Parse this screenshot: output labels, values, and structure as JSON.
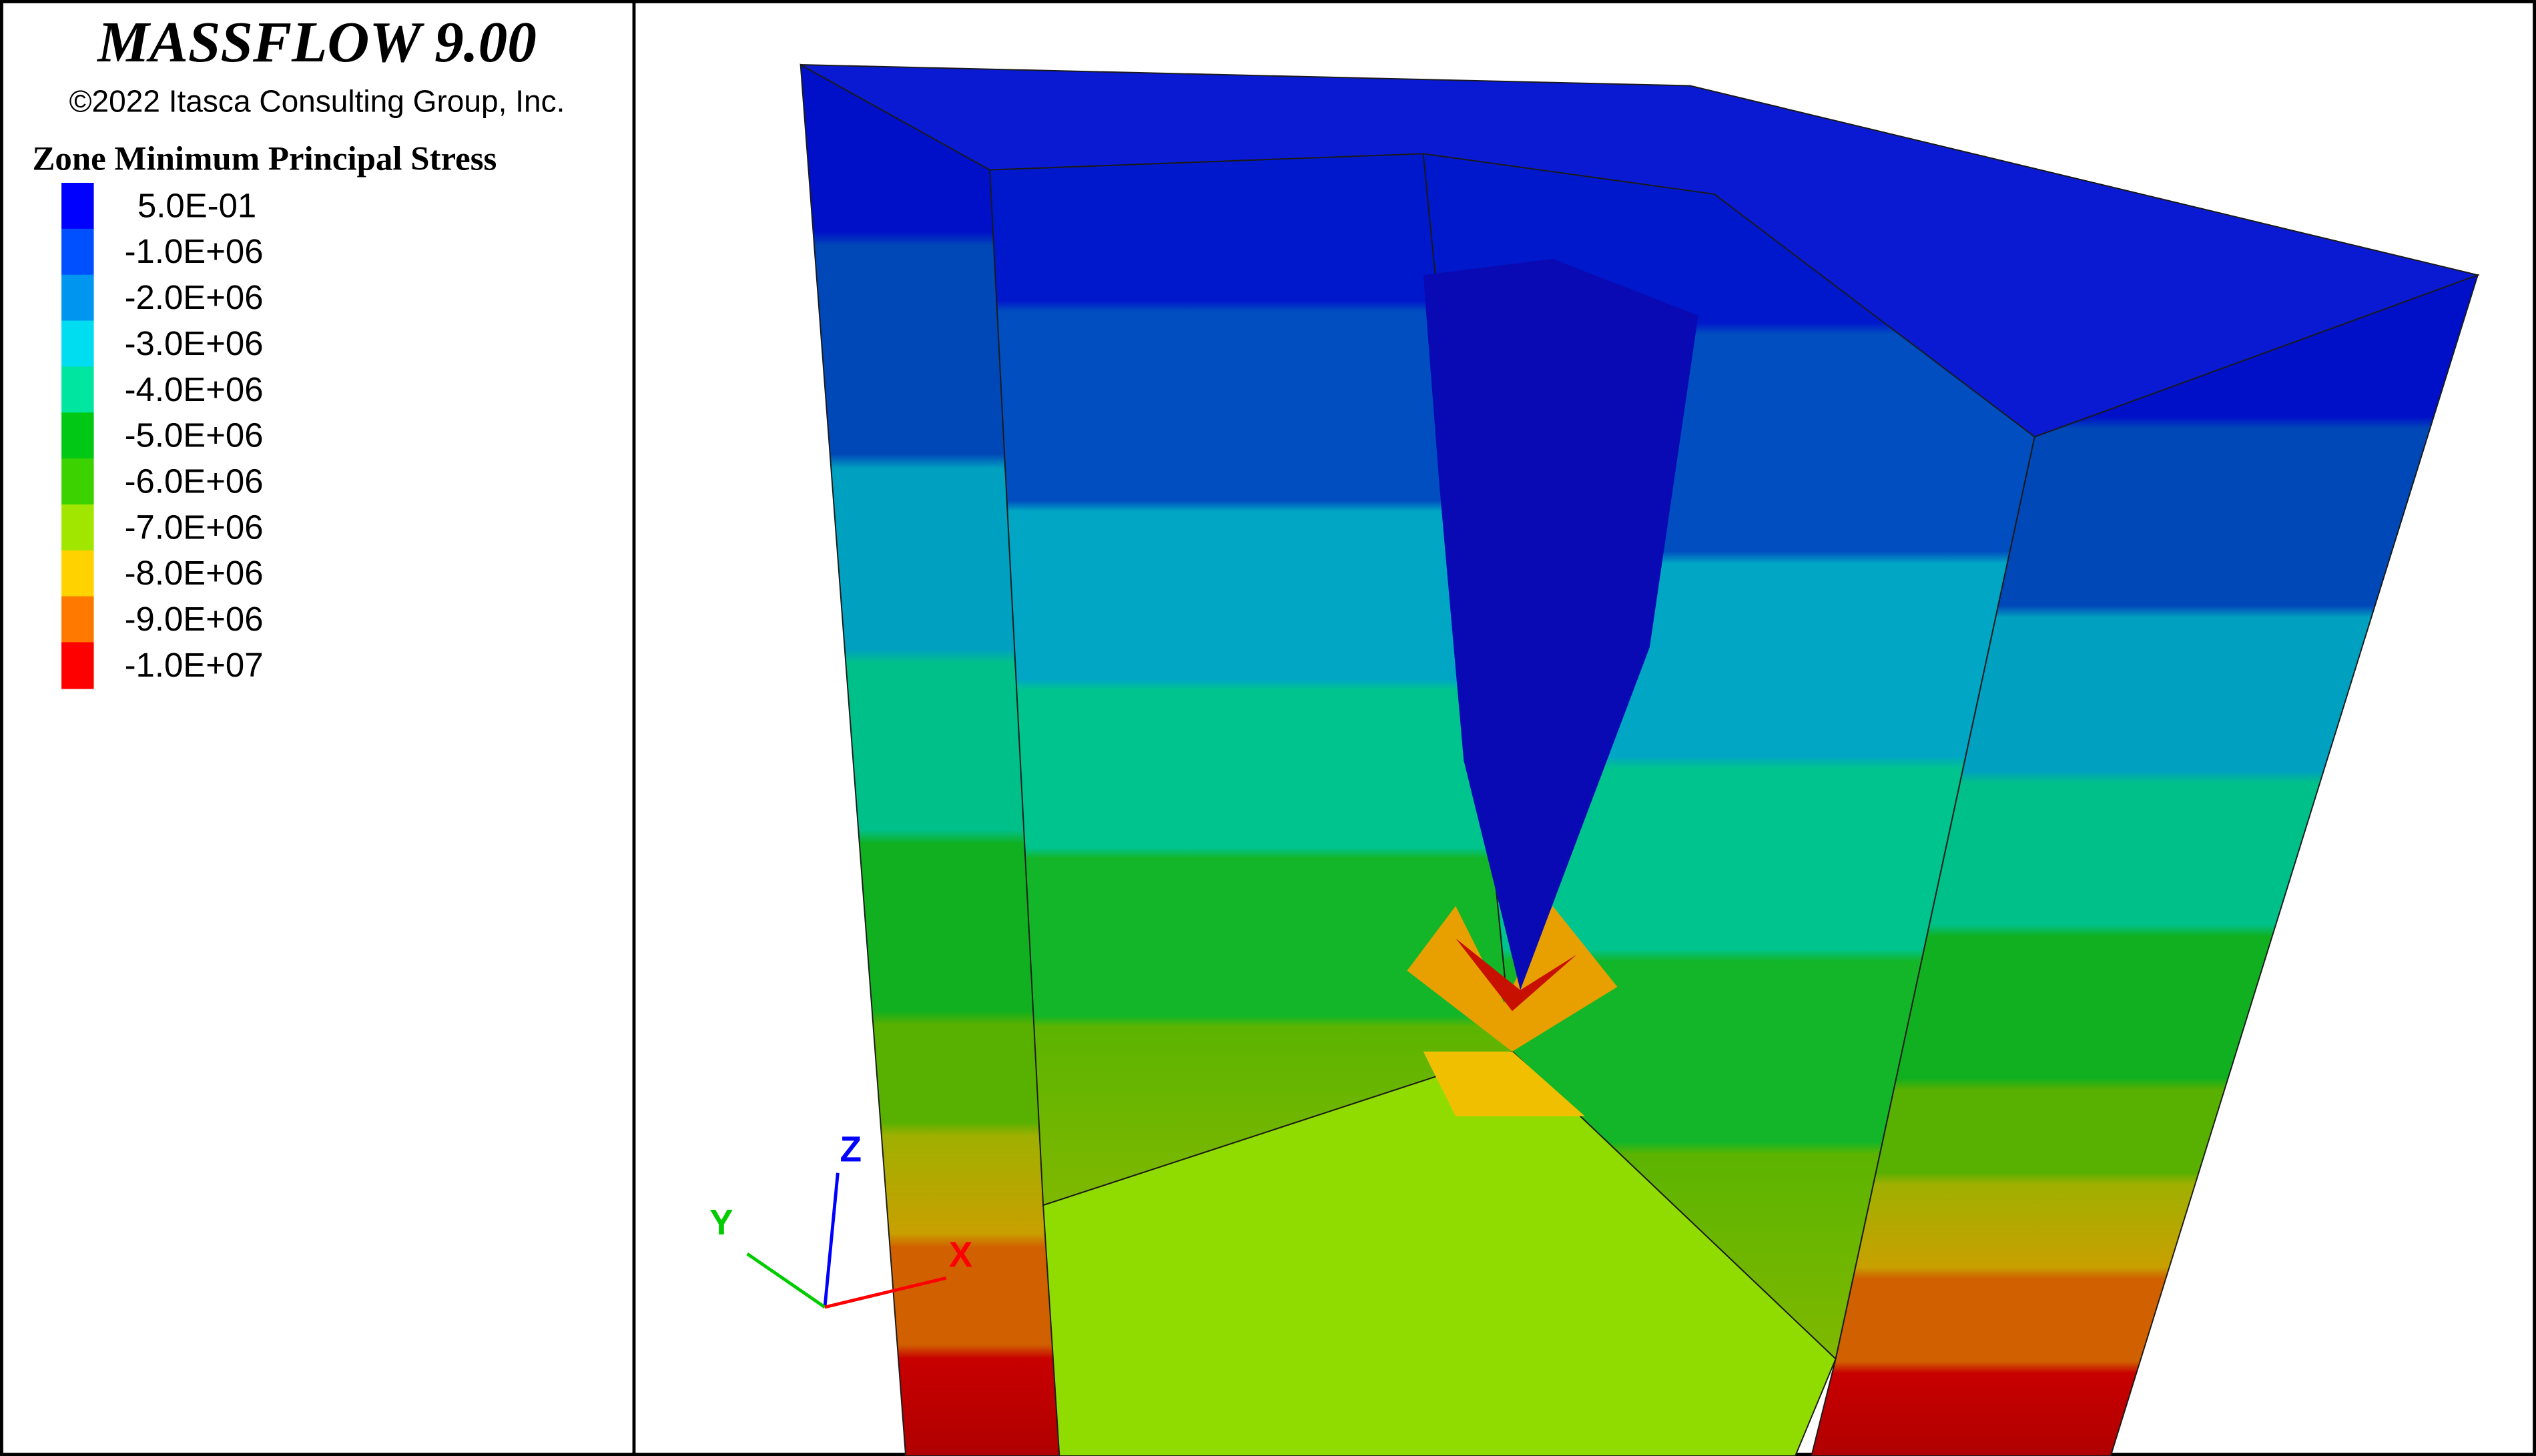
{
  "header": {
    "title": "MASSFLOW 9.00",
    "copyright": "©2022 Itasca Consulting Group, Inc."
  },
  "legend": {
    "title": "Zone Minimum Principal Stress",
    "items": [
      {
        "label": "5.0E-01",
        "color": "#0000ff"
      },
      {
        "label": "-1.0E+06",
        "color": "#0050ff"
      },
      {
        "label": "-2.0E+06",
        "color": "#0096f0"
      },
      {
        "label": "-3.0E+06",
        "color": "#00dcf0"
      },
      {
        "label": "-4.0E+06",
        "color": "#00e6a0"
      },
      {
        "label": "-5.0E+06",
        "color": "#00c814"
      },
      {
        "label": "-6.0E+06",
        "color": "#3cd200"
      },
      {
        "label": "-7.0E+06",
        "color": "#a0e600"
      },
      {
        "label": "-8.0E+06",
        "color": "#ffd200"
      },
      {
        "label": "-9.0E+06",
        "color": "#ff7800"
      },
      {
        "label": "-1.0E+07",
        "color": "#ff0000"
      }
    ]
  },
  "axes": {
    "x": "X",
    "y": "Y",
    "z": "Z"
  }
}
